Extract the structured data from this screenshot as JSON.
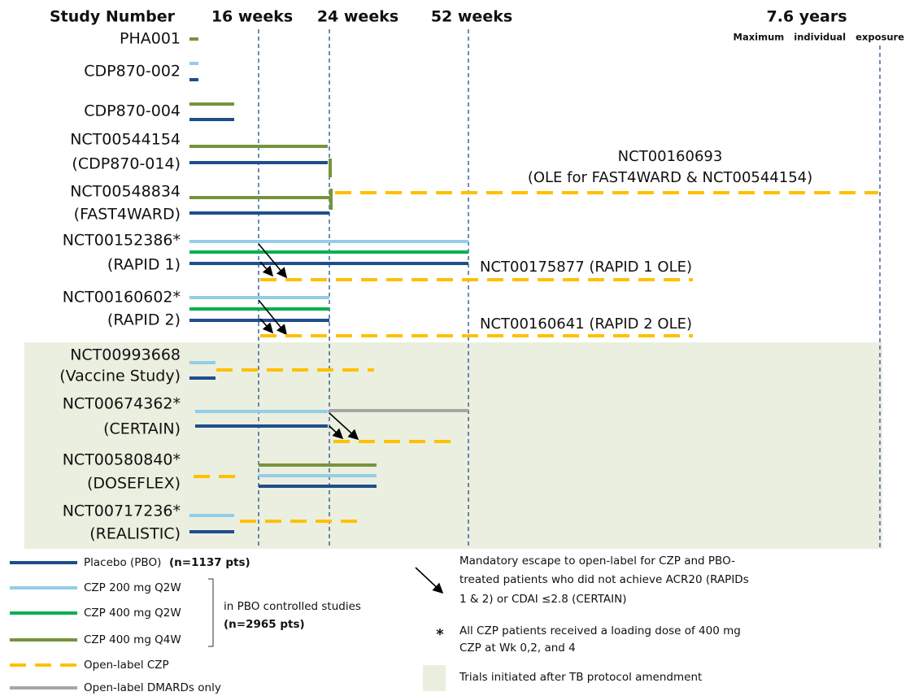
{
  "header": {
    "column_title": "Study Number",
    "timepoints": [
      "16 weeks",
      "24 weeks",
      "52 weeks",
      "7.6 years"
    ],
    "max_note": "Maximum individual exposure"
  },
  "studies": [
    {
      "lines": [
        "PHA001"
      ]
    },
    {
      "lines": [
        "CDP870-002"
      ]
    },
    {
      "lines": [
        "CDP870-004"
      ]
    },
    {
      "lines": [
        "NCT00544154",
        "(CDP870-014)"
      ]
    },
    {
      "lines": [
        "NCT00548834",
        "(FAST4WARD)"
      ]
    },
    {
      "lines": [
        "NCT00152386*",
        "(RAPID 1)"
      ]
    },
    {
      "lines": [
        "NCT00160602*",
        "(RAPID 2)"
      ]
    },
    {
      "lines": [
        "NCT00993668",
        "(Vaccine Study)"
      ]
    },
    {
      "lines": [
        "NCT00674362*",
        "(CERTAIN)"
      ]
    },
    {
      "lines": [
        "NCT00580840*",
        "(DOSEFLEX)"
      ]
    },
    {
      "lines": [
        "NCT00717236*",
        "(REALISTIC)"
      ]
    }
  ],
  "ole_labels": [
    {
      "lines": [
        "NCT00160693",
        "(OLE for FAST4WARD & NCT00544154)"
      ]
    },
    {
      "lines": [
        "NCT00175877 (RAPID 1 OLE)"
      ]
    },
    {
      "lines": [
        "NCT00160641 (RAPID 2 OLE)"
      ]
    }
  ],
  "legend": {
    "items": [
      "Placebo (PBO)",
      "CZP 200 mg Q2W",
      "CZP 400 mg Q2W",
      "CZP 400 mg Q4W",
      "Open-label CZP",
      "Open-label DMARDs only"
    ],
    "placebo_n": "(n=1137 pts)",
    "group_note": "in PBO controlled studies",
    "group_n": "(n=2965 pts)"
  },
  "notes": {
    "escape": [
      "Mandatory escape to open-label for CZP and PBO-",
      "treated patients who did not achieve ACR20 (RAPIDs",
      "1 & 2) or CDAI ≤2.8 (CERTAIN)"
    ],
    "asterisk": "*",
    "loading": [
      "All CZP patients received a loading dose of 400 mg",
      "CZP at Wk 0,2, and 4"
    ],
    "shaded": "Trials initiated  after TB protocol amendment"
  }
}
